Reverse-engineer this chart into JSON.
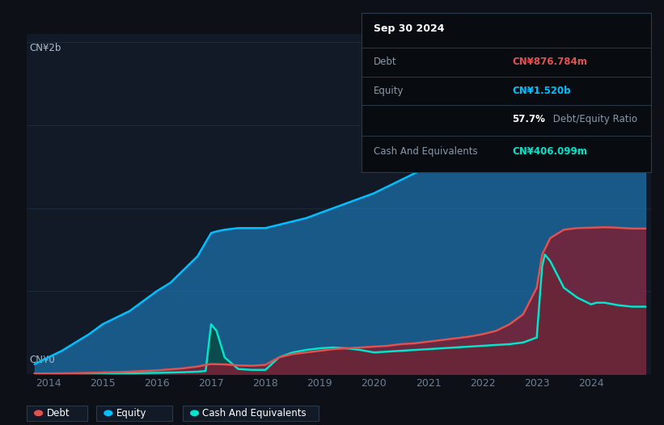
{
  "background_color": "#0d1117",
  "plot_bg_color": "#131a27",
  "grid_color": "#1e2d40",
  "ylabel_text": "CN¥2b",
  "ylabel0_text": "CN¥0",
  "title_box": {
    "date": "Sep 30 2024",
    "debt_label": "Debt",
    "debt_value": "CN¥876.784m",
    "debt_color": "#e05252",
    "equity_label": "Equity",
    "equity_value": "CN¥1.520b",
    "equity_color": "#00bfff",
    "ratio_bold": "57.7%",
    "ratio_rest": " Debt/Equity Ratio",
    "cash_label": "Cash And Equivalents",
    "cash_value": "CN¥406.099m",
    "cash_color": "#00e5cc"
  },
  "legend": {
    "debt": "Debt",
    "equity": "Equity",
    "cash": "Cash And Equivalents",
    "debt_color": "#e05252",
    "equity_color": "#00bfff",
    "cash_color": "#00e5cc"
  },
  "xmin": 2013.6,
  "xmax": 2025.1,
  "ymin": 0,
  "ymax": 2050000000.0,
  "xticks": [
    2014,
    2015,
    2016,
    2017,
    2018,
    2019,
    2020,
    2021,
    2022,
    2023,
    2024
  ],
  "equity_x": [
    2013.75,
    2014.0,
    2014.25,
    2014.5,
    2014.75,
    2015.0,
    2015.25,
    2015.5,
    2015.75,
    2016.0,
    2016.25,
    2016.5,
    2016.75,
    2017.0,
    2017.1,
    2017.25,
    2017.5,
    2017.75,
    2018.0,
    2018.25,
    2018.5,
    2018.75,
    2019.0,
    2019.25,
    2019.5,
    2019.75,
    2020.0,
    2020.25,
    2020.5,
    2020.75,
    2021.0,
    2021.25,
    2021.5,
    2021.75,
    2022.0,
    2022.25,
    2022.5,
    2022.75,
    2023.0,
    2023.1,
    2023.25,
    2023.5,
    2023.75,
    2024.0,
    2024.25,
    2024.5,
    2024.75,
    2025.0
  ],
  "equity_y": [
    60000000.0,
    100000000.0,
    140000000.0,
    190000000.0,
    240000000.0,
    300000000.0,
    340000000.0,
    380000000.0,
    440000000.0,
    500000000.0,
    550000000.0,
    630000000.0,
    710000000.0,
    850000000.0,
    860000000.0,
    870000000.0,
    880000000.0,
    880000000.0,
    880000000.0,
    900000000.0,
    920000000.0,
    940000000.0,
    970000000.0,
    1000000000.0,
    1030000000.0,
    1060000000.0,
    1090000000.0,
    1130000000.0,
    1170000000.0,
    1210000000.0,
    1250000000.0,
    1300000000.0,
    1380000000.0,
    1460000000.0,
    1550000000.0,
    1650000000.0,
    1760000000.0,
    1860000000.0,
    1930000000.0,
    1960000000.0,
    1880000000.0,
    1730000000.0,
    1620000000.0,
    1570000000.0,
    1540000000.0,
    1520000000.0,
    1520000000.0,
    1520000000.0
  ],
  "debt_x": [
    2013.75,
    2014.0,
    2014.25,
    2014.5,
    2014.75,
    2015.0,
    2015.25,
    2015.5,
    2015.75,
    2016.0,
    2016.25,
    2016.5,
    2016.75,
    2016.9,
    2017.0,
    2017.25,
    2017.5,
    2017.75,
    2018.0,
    2018.25,
    2018.5,
    2018.75,
    2019.0,
    2019.25,
    2019.5,
    2019.75,
    2020.0,
    2020.25,
    2020.5,
    2020.75,
    2021.0,
    2021.25,
    2021.5,
    2021.75,
    2022.0,
    2022.25,
    2022.5,
    2022.75,
    2023.0,
    2023.1,
    2023.25,
    2023.5,
    2023.75,
    2024.0,
    2024.25,
    2024.5,
    2024.75,
    2025.0
  ],
  "debt_y": [
    2000000.0,
    3000000.0,
    4000000.0,
    5000000.0,
    7000000.0,
    9000000.0,
    11000000.0,
    14000000.0,
    18000000.0,
    22000000.0,
    28000000.0,
    35000000.0,
    45000000.0,
    55000000.0,
    60000000.0,
    58000000.0,
    52000000.0,
    50000000.0,
    55000000.0,
    100000000.0,
    120000000.0,
    130000000.0,
    140000000.0,
    150000000.0,
    155000000.0,
    160000000.0,
    165000000.0,
    170000000.0,
    180000000.0,
    185000000.0,
    195000000.0,
    205000000.0,
    215000000.0,
    225000000.0,
    240000000.0,
    260000000.0,
    300000000.0,
    360000000.0,
    520000000.0,
    720000000.0,
    820000000.0,
    870000000.0,
    880000000.0,
    882000000.0,
    885000000.0,
    882000000.0,
    877000000.0,
    877000000.0
  ],
  "cash_x": [
    2013.75,
    2014.0,
    2014.25,
    2014.5,
    2014.75,
    2015.0,
    2015.25,
    2015.5,
    2015.75,
    2016.0,
    2016.25,
    2016.5,
    2016.75,
    2016.9,
    2017.0,
    2017.1,
    2017.25,
    2017.5,
    2017.75,
    2018.0,
    2018.25,
    2018.5,
    2018.75,
    2019.0,
    2019.25,
    2019.5,
    2019.75,
    2020.0,
    2020.25,
    2020.5,
    2020.75,
    2021.0,
    2021.25,
    2021.5,
    2021.75,
    2022.0,
    2022.25,
    2022.5,
    2022.75,
    2023.0,
    2023.1,
    2023.15,
    2023.25,
    2023.5,
    2023.75,
    2024.0,
    2024.1,
    2024.25,
    2024.5,
    2024.75,
    2025.0
  ],
  "cash_y": [
    1000000.0,
    2000000.0,
    2000000.0,
    3000000.0,
    3000000.0,
    4000000.0,
    4000000.0,
    5000000.0,
    6000000.0,
    7000000.0,
    9000000.0,
    11000000.0,
    14000000.0,
    18000000.0,
    300000000.0,
    260000000.0,
    100000000.0,
    30000000.0,
    25000000.0,
    25000000.0,
    100000000.0,
    130000000.0,
    145000000.0,
    155000000.0,
    160000000.0,
    155000000.0,
    145000000.0,
    130000000.0,
    135000000.0,
    140000000.0,
    145000000.0,
    150000000.0,
    155000000.0,
    160000000.0,
    165000000.0,
    170000000.0,
    175000000.0,
    180000000.0,
    190000000.0,
    220000000.0,
    650000000.0,
    720000000.0,
    680000000.0,
    520000000.0,
    460000000.0,
    420000000.0,
    430000000.0,
    430000000.0,
    415000000.0,
    406000000.0,
    406000000.0
  ]
}
